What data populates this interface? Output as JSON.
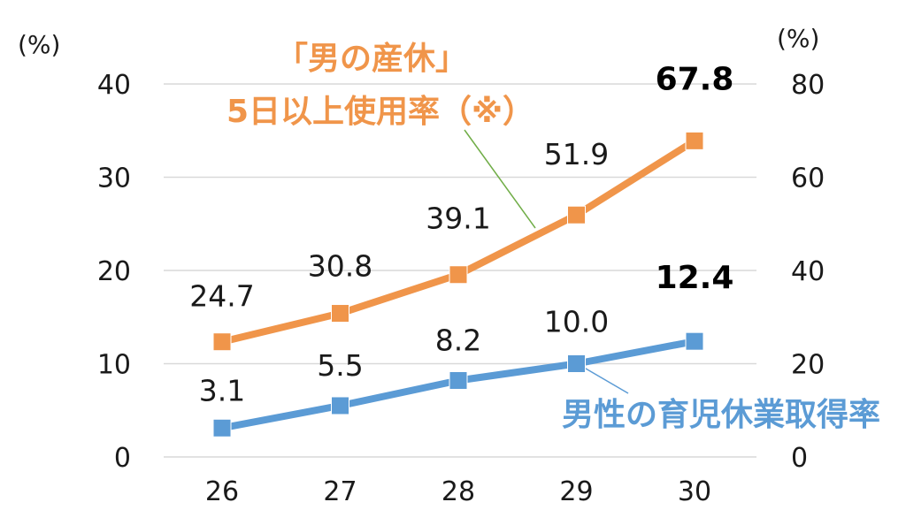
{
  "chart_data": {
    "type": "line",
    "categories": [
      "26",
      "27",
      "28",
      "29",
      "30"
    ],
    "left_unit": "(%)",
    "right_unit": "(%)",
    "left_ticks": [
      "0",
      "10",
      "20",
      "30",
      "40"
    ],
    "right_ticks": [
      "0",
      "20",
      "40",
      "60",
      "80"
    ],
    "ylim_left": [
      0,
      40
    ],
    "ylim_right": [
      0,
      80
    ],
    "grid": true,
    "series": [
      {
        "name": "男性の育児休業取得率",
        "axis": "left",
        "color": "#5b9bd5",
        "values": [
          3.1,
          5.5,
          8.2,
          10.0,
          12.4
        ],
        "labels": [
          "3.1",
          "5.5",
          "8.2",
          "10.0",
          "12.4"
        ]
      },
      {
        "name_lines": [
          "「男の産休」",
          "5日以上使用率（※）"
        ],
        "axis": "right",
        "color": "#f0954a",
        "values": [
          24.7,
          30.8,
          39.1,
          51.9,
          67.8
        ],
        "labels": [
          "24.7",
          "30.8",
          "39.1",
          "51.9",
          "67.8"
        ]
      }
    ]
  }
}
